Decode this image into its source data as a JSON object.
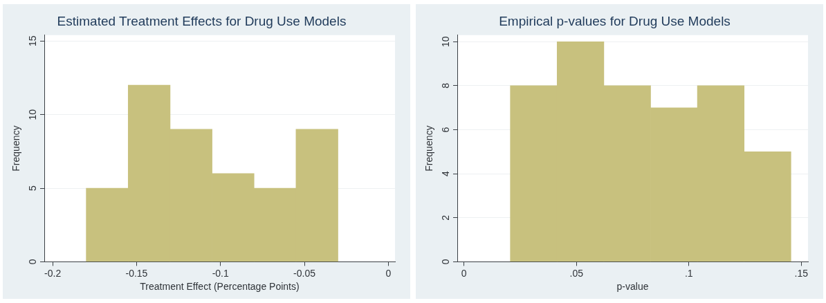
{
  "chart_data": [
    {
      "type": "histogram",
      "title": "Estimated Treatment Effects for Drug Use Models",
      "xlabel": "Treatment Effect (Percentage Points)",
      "ylabel": "Frequency",
      "bins": [
        -0.18,
        -0.155,
        -0.13,
        -0.105,
        -0.08,
        -0.055,
        -0.03
      ],
      "values": [
        5,
        12,
        9,
        6,
        5,
        9
      ],
      "color": "#c8c17e",
      "xlim": [
        -0.205,
        0.004
      ],
      "xticks": [
        -0.2,
        -0.15,
        -0.1,
        -0.05,
        0
      ],
      "ylim": [
        0,
        15.4
      ],
      "yticks": [
        0,
        5,
        10,
        15
      ],
      "grid": "y"
    },
    {
      "type": "histogram",
      "title": "Empirical p-values for Drug Use Models",
      "xlabel": "p-value",
      "ylabel": "Frequency",
      "bins": [
        0.0206,
        0.0414,
        0.0622,
        0.083,
        0.1038,
        0.1246,
        0.1454
      ],
      "values": [
        8,
        10,
        8,
        7,
        8,
        5
      ],
      "color": "#c8c17e",
      "xlim": [
        -0.003,
        0.153
      ],
      "xticks": [
        0,
        {
          "value": 0.05,
          "label": ".05"
        },
        {
          "value": 0.1,
          "label": ".1"
        },
        {
          "value": 0.15,
          "label": ".15"
        }
      ],
      "ylim": [
        0,
        10.3
      ],
      "yticks": [
        0,
        2,
        4,
        6,
        8,
        10
      ],
      "grid": "y"
    }
  ]
}
